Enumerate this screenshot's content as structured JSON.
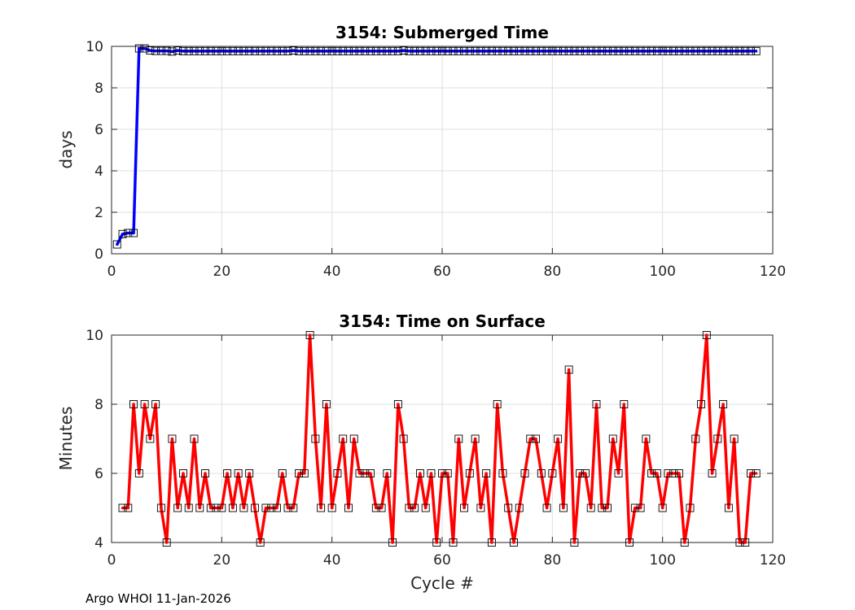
{
  "footer": "Argo WHOI 11-Jan-2026",
  "chart_data": [
    {
      "type": "line",
      "title": "3154: Submerged Time",
      "xlabel": "",
      "ylabel": "days",
      "xlim": [
        0,
        120
      ],
      "ylim": [
        0,
        10
      ],
      "xticks": [
        "0",
        "20",
        "40",
        "60",
        "80",
        "100",
        "120"
      ],
      "yticks": [
        "0",
        "2",
        "4",
        "6",
        "8",
        "10"
      ],
      "grid": true,
      "series": [
        {
          "color": "#0000ff",
          "marker": "square",
          "x": [
            1,
            2,
            3,
            4,
            5,
            6,
            7,
            8,
            9,
            10,
            11,
            12,
            13,
            14,
            15,
            16,
            17,
            18,
            19,
            20,
            21,
            22,
            23,
            24,
            25,
            26,
            27,
            28,
            29,
            30,
            31,
            32,
            33,
            34,
            35,
            36,
            37,
            38,
            39,
            40,
            41,
            42,
            43,
            44,
            45,
            46,
            47,
            48,
            49,
            50,
            51,
            52,
            53,
            54,
            55,
            56,
            57,
            58,
            59,
            60,
            61,
            62,
            63,
            64,
            65,
            66,
            67,
            68,
            69,
            70,
            71,
            72,
            73,
            74,
            75,
            76,
            77,
            78,
            79,
            80,
            81,
            82,
            83,
            84,
            85,
            86,
            87,
            88,
            89,
            90,
            91,
            92,
            93,
            94,
            95,
            96,
            97,
            98,
            99,
            100,
            101,
            102,
            103,
            104,
            105,
            106,
            107,
            108,
            109,
            110,
            111,
            112,
            113,
            114,
            115,
            116,
            117
          ],
          "y": [
            0.45,
            0.95,
            1.0,
            1.0,
            9.9,
            9.9,
            9.8,
            9.78,
            9.78,
            9.78,
            9.75,
            9.8,
            9.77,
            9.77,
            9.77,
            9.77,
            9.77,
            9.77,
            9.77,
            9.77,
            9.77,
            9.77,
            9.77,
            9.77,
            9.77,
            9.77,
            9.77,
            9.77,
            9.77,
            9.77,
            9.77,
            9.77,
            9.8,
            9.77,
            9.77,
            9.77,
            9.77,
            9.77,
            9.77,
            9.77,
            9.77,
            9.77,
            9.77,
            9.77,
            9.77,
            9.77,
            9.77,
            9.77,
            9.77,
            9.77,
            9.77,
            9.77,
            9.8,
            9.77,
            9.77,
            9.77,
            9.77,
            9.77,
            9.77,
            9.77,
            9.77,
            9.77,
            9.77,
            9.77,
            9.77,
            9.77,
            9.77,
            9.77,
            9.77,
            9.77,
            9.77,
            9.77,
            9.77,
            9.77,
            9.77,
            9.77,
            9.77,
            9.77,
            9.77,
            9.77,
            9.77,
            9.77,
            9.77,
            9.77,
            9.77,
            9.77,
            9.77,
            9.77,
            9.77,
            9.77,
            9.77,
            9.77,
            9.77,
            9.77,
            9.77,
            9.77,
            9.77,
            9.77,
            9.77,
            9.77,
            9.77,
            9.77,
            9.77,
            9.77,
            9.77,
            9.77,
            9.77,
            9.77,
            9.77,
            9.77,
            9.77,
            9.77,
            9.77,
            9.77,
            9.77,
            9.77,
            9.77
          ]
        }
      ]
    },
    {
      "type": "line",
      "title": "3154: Time on Surface",
      "xlabel": "Cycle #",
      "ylabel": "Minutes",
      "xlim": [
        0,
        120
      ],
      "ylim": [
        4,
        10
      ],
      "xticks": [
        "0",
        "20",
        "40",
        "60",
        "80",
        "100",
        "120"
      ],
      "yticks": [
        "4",
        "6",
        "8",
        "10"
      ],
      "grid": true,
      "series": [
        {
          "color": "#ff0000",
          "marker": "square",
          "x": [
            2,
            3,
            4,
            5,
            6,
            7,
            8,
            9,
            10,
            11,
            12,
            13,
            14,
            15,
            16,
            17,
            18,
            19,
            20,
            21,
            22,
            23,
            24,
            25,
            26,
            27,
            28,
            29,
            30,
            31,
            32,
            33,
            34,
            35,
            36,
            37,
            38,
            39,
            40,
            41,
            42,
            43,
            44,
            45,
            46,
            47,
            48,
            49,
            50,
            51,
            52,
            53,
            54,
            55,
            56,
            57,
            58,
            59,
            60,
            61,
            62,
            63,
            64,
            65,
            66,
            67,
            68,
            69,
            70,
            71,
            72,
            73,
            74,
            75,
            76,
            77,
            78,
            79,
            80,
            81,
            82,
            83,
            84,
            85,
            86,
            87,
            88,
            89,
            90,
            91,
            92,
            93,
            94,
            95,
            96,
            97,
            98,
            99,
            100,
            101,
            102,
            103,
            104,
            105,
            106,
            107,
            108,
            109,
            110,
            111,
            112,
            113,
            114,
            115,
            116,
            117
          ],
          "y": [
            5,
            5,
            8,
            6,
            8,
            7,
            8,
            5,
            4,
            7,
            5,
            6,
            5,
            7,
            5,
            6,
            5,
            5,
            5,
            6,
            5,
            6,
            5,
            6,
            5,
            4,
            5,
            5,
            5,
            6,
            5,
            5,
            6,
            6,
            10,
            7,
            5,
            8,
            5,
            6,
            7,
            5,
            7,
            6,
            6,
            6,
            5,
            5,
            6,
            4,
            8,
            7,
            5,
            5,
            6,
            5,
            6,
            4,
            6,
            6,
            4,
            7,
            5,
            6,
            7,
            5,
            6,
            4,
            8,
            6,
            5,
            4,
            5,
            6,
            7,
            7,
            6,
            5,
            6,
            7,
            5,
            9,
            4,
            6,
            6,
            5,
            8,
            5,
            5,
            7,
            6,
            8,
            4,
            5,
            5,
            7,
            6,
            6,
            5,
            6,
            6,
            6,
            4,
            5,
            7,
            8,
            10,
            6,
            7,
            8,
            5,
            7,
            4,
            4,
            6,
            6
          ]
        }
      ]
    }
  ]
}
